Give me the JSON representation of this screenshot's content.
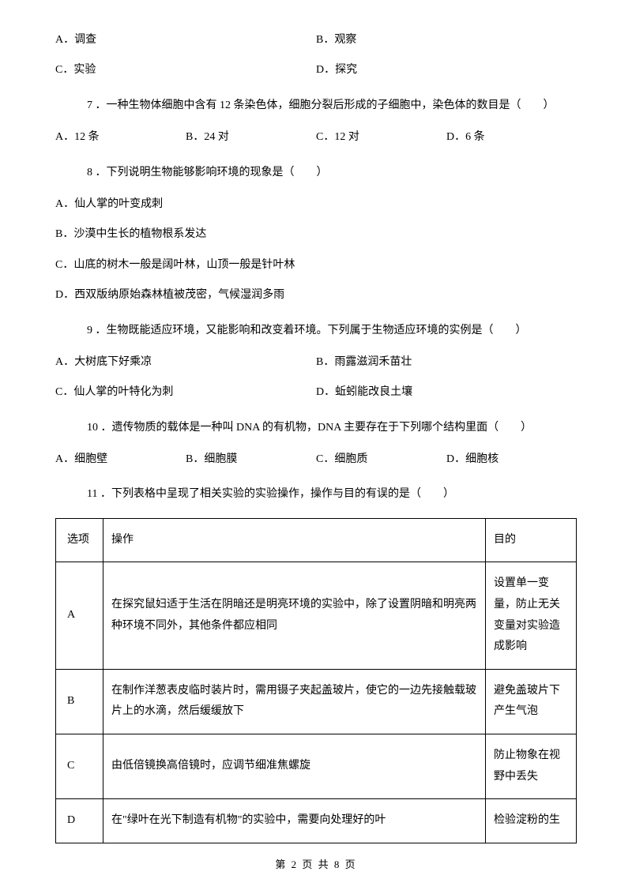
{
  "q6opts": {
    "A": "A．调查",
    "B": "B．观察",
    "C": "C．实验",
    "D": "D．探究"
  },
  "q7": {
    "stem": "7 ．一种生物体细胞中含有 12 条染色体，细胞分裂后形成的子细胞中，染色体的数目是（　　）",
    "A": "A．12 条",
    "B": "B．24 对",
    "C": "C．12 对",
    "D": "D．6 条"
  },
  "q8": {
    "stem": "8 ．下列说明生物能够影响环境的现象是（　　）",
    "A": "A．仙人掌的叶变成刺",
    "B": "B．沙漠中生长的植物根系发达",
    "C": "C．山底的树木一般是阔叶林，山顶一般是针叶林",
    "D": "D．西双版纳原始森林植被茂密，气候湿润多雨"
  },
  "q9": {
    "stem": "9 ．生物既能适应环境，又能影响和改变着环境。下列属于生物适应环境的实例是（　　）",
    "A": "A．大树底下好乘凉",
    "B": "B．雨露滋润禾苗壮",
    "C": "C．仙人掌的叶特化为刺",
    "D": "D．蚯蚓能改良土壤"
  },
  "q10": {
    "stem": "10 ．遗传物质的载体是一种叫 DNA 的有机物，DNA 主要存在于下列哪个结构里面（　　）",
    "A": "A．细胞壁",
    "B": "B．细胞膜",
    "C": "C．细胞质",
    "D": "D．细胞核"
  },
  "q11": {
    "stem": "11 ．下列表格中呈现了相关实验的实验操作，操作与目的有误的是（　　）",
    "headers": {
      "h1": "选项",
      "h2": "操作",
      "h3": "目的"
    },
    "rows": [
      {
        "opt": "A",
        "op": "在探究鼠妇适于生活在阴暗还是明亮环境的实验中，除了设置阴暗和明亮两种环境不同外，其他条件都应相同",
        "goal": "设置单一变量，防止无关变量对实验造成影响"
      },
      {
        "opt": "B",
        "op": "在制作洋葱表皮临时装片时，需用镊子夹起盖玻片，使它的一边先接触载玻片上的水滴，然后缓缓放下",
        "goal": "避免盖玻片下产生气泡"
      },
      {
        "opt": "C",
        "op": "由低倍镜换高倍镜时，应调节细准焦螺旋",
        "goal": "防止物象在视野中丢失"
      },
      {
        "opt": "D",
        "op": "在\"绿叶在光下制造有机物\"的实验中，需要向处理好的叶",
        "goal": "检验淀粉的生"
      }
    ]
  },
  "footer": "第 2 页 共 8 页"
}
